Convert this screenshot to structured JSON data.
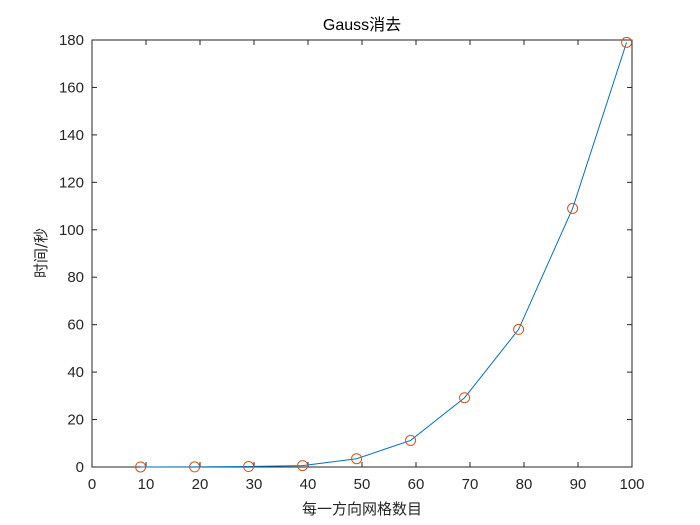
{
  "chart_data": {
    "type": "line",
    "title": "Gauss消去",
    "xlabel": "每一方向网格数目",
    "ylabel": "时间/秒",
    "xlim": [
      0,
      100
    ],
    "ylim": [
      0,
      180
    ],
    "xticks": [
      0,
      10,
      20,
      30,
      40,
      50,
      60,
      70,
      80,
      90,
      100
    ],
    "yticks": [
      0,
      20,
      40,
      60,
      80,
      100,
      120,
      140,
      160,
      180
    ],
    "grid": false,
    "series": [
      {
        "line_color": "#0072BD",
        "marker": "circle",
        "marker_color": "#D95319",
        "x": [
          9,
          19,
          29,
          39,
          49,
          59,
          69,
          79,
          89,
          99
        ],
        "y": [
          0.02,
          0.05,
          0.2,
          0.6,
          3.5,
          11.2,
          29.2,
          58,
          109,
          179
        ]
      }
    ],
    "colors": {
      "axis": "#262626",
      "background": "#ffffff"
    }
  }
}
